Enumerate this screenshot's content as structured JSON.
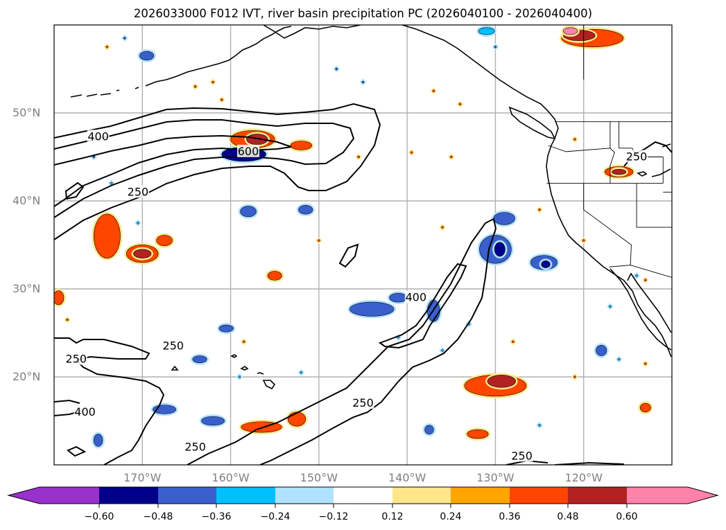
{
  "title": "2026033000 F012 IVT, river basin precipitation PC (2026040100 - 2026040400)",
  "axes": {
    "lat_labels": [
      {
        "label": "50°N",
        "lat": 50
      },
      {
        "label": "40°N",
        "lat": 40
      },
      {
        "label": "30°N",
        "lat": 30
      },
      {
        "label": "20°N",
        "lat": 20
      }
    ],
    "lon_labels": [
      {
        "label": "170°W",
        "lon": -170
      },
      {
        "label": "160°W",
        "lon": -160
      },
      {
        "label": "150°W",
        "lon": -150
      },
      {
        "label": "140°W",
        "lon": -140
      },
      {
        "label": "130°W",
        "lon": -130
      },
      {
        "label": "120°W",
        "lon": -120
      }
    ],
    "extent": {
      "lon_min": -180,
      "lon_max": -110,
      "lat_min": 10,
      "lat_max": 60
    }
  },
  "ivt_contours": {
    "levels": [
      250,
      400,
      600
    ],
    "labels": [
      {
        "text": "400",
        "lon": -175,
        "lat": 47.3
      },
      {
        "text": "600",
        "lon": -158,
        "lat": 45.6
      },
      {
        "text": "250",
        "lon": -170.5,
        "lat": 41
      },
      {
        "text": "250",
        "lon": -166.5,
        "lat": 23.5
      },
      {
        "text": "250",
        "lon": -177.5,
        "lat": 22
      },
      {
        "text": "400",
        "lon": -176.5,
        "lat": 16
      },
      {
        "text": "400",
        "lon": -139,
        "lat": 29
      },
      {
        "text": "250",
        "lon": -145,
        "lat": 17
      },
      {
        "text": "250",
        "lon": -164,
        "lat": 12
      },
      {
        "text": "250",
        "lon": -127,
        "lat": 11
      },
      {
        "text": "250",
        "lon": -114,
        "lat": 45
      }
    ]
  },
  "colorbar": {
    "ticks": [
      "−0.60",
      "−0.48",
      "−0.36",
      "−0.24",
      "−0.12",
      "0.12",
      "0.24",
      "0.36",
      "0.48",
      "0.60"
    ],
    "colors": [
      "#9932cc",
      "#00008b",
      "#3a5fcd",
      "#00bfff",
      "#b0e2ff",
      "#ffffff",
      "#fde68a",
      "#ffa500",
      "#ff4500",
      "#b22222",
      "#ff82ab"
    ]
  },
  "precip_blobs": [
    {
      "lon": -158.5,
      "lat": 45.3,
      "rx": 2.5,
      "ry": 0.8,
      "cls": 1
    },
    {
      "lon": -157.5,
      "lat": 47,
      "rx": 2.5,
      "ry": 1,
      "cls": 8
    },
    {
      "lon": -157,
      "lat": 47,
      "rx": 1.2,
      "ry": 0.6,
      "cls": 9
    },
    {
      "lon": -152,
      "lat": 46.3,
      "rx": 1.2,
      "ry": 0.5,
      "cls": 8
    },
    {
      "lon": -174,
      "lat": 36,
      "rx": 1.5,
      "ry": 2.5,
      "cls": 8
    },
    {
      "lon": -170,
      "lat": 34,
      "rx": 1.8,
      "ry": 1,
      "cls": 8
    },
    {
      "lon": -170,
      "lat": 34,
      "rx": 1,
      "ry": 0.5,
      "cls": 9
    },
    {
      "lon": -167.5,
      "lat": 35.5,
      "rx": 0.9,
      "ry": 0.6,
      "cls": 8
    },
    {
      "lon": -179.5,
      "lat": 29,
      "rx": 0.6,
      "ry": 0.8,
      "cls": 8
    },
    {
      "lon": -156.5,
      "lat": 14.3,
      "rx": 2.3,
      "ry": 0.6,
      "cls": 8
    },
    {
      "lon": -152.5,
      "lat": 15.2,
      "rx": 1,
      "ry": 0.8,
      "cls": 8
    },
    {
      "lon": -155,
      "lat": 31.5,
      "rx": 0.8,
      "ry": 0.5,
      "cls": 8
    },
    {
      "lon": -130,
      "lat": 19,
      "rx": 3.5,
      "ry": 1.2,
      "cls": 8
    },
    {
      "lon": -129.3,
      "lat": 19.5,
      "rx": 1.6,
      "ry": 0.7,
      "cls": 9
    },
    {
      "lon": -132,
      "lat": 13.5,
      "rx": 1.2,
      "ry": 0.5,
      "cls": 8
    },
    {
      "lon": -119,
      "lat": 58.5,
      "rx": 3.5,
      "ry": 1,
      "cls": 8
    },
    {
      "lon": -120.5,
      "lat": 58.8,
      "rx": 1.8,
      "ry": 0.6,
      "cls": 9
    },
    {
      "lon": -121.5,
      "lat": 59.3,
      "rx": 0.8,
      "ry": 0.4,
      "cls": 10
    },
    {
      "lon": -116,
      "lat": 43.3,
      "rx": 1.6,
      "ry": 0.6,
      "cls": 8
    },
    {
      "lon": -116,
      "lat": 43.3,
      "rx": 0.8,
      "ry": 0.3,
      "cls": 9
    },
    {
      "lon": -113,
      "lat": 16.5,
      "rx": 0.6,
      "ry": 0.5,
      "cls": 8
    },
    {
      "lon": -130,
      "lat": 34.5,
      "rx": 1.8,
      "ry": 1.6,
      "cls": 2
    },
    {
      "lon": -129.5,
      "lat": 34.5,
      "rx": 0.6,
      "ry": 0.8,
      "cls": 1
    },
    {
      "lon": -124.5,
      "lat": 33,
      "rx": 1.5,
      "ry": 0.8,
      "cls": 2
    },
    {
      "lon": -124.3,
      "lat": 32.8,
      "rx": 0.5,
      "ry": 0.4,
      "cls": 1
    },
    {
      "lon": -129,
      "lat": 38,
      "rx": 1.2,
      "ry": 0.7,
      "cls": 2
    },
    {
      "lon": -144,
      "lat": 27.7,
      "rx": 2.5,
      "ry": 0.8,
      "cls": 2
    },
    {
      "lon": -141,
      "lat": 29,
      "rx": 1,
      "ry": 0.5,
      "cls": 2
    },
    {
      "lon": -137,
      "lat": 27.5,
      "rx": 0.7,
      "ry": 1.2,
      "cls": 2
    },
    {
      "lon": -158,
      "lat": 38.8,
      "rx": 0.9,
      "ry": 0.6,
      "cls": 2
    },
    {
      "lon": -151.5,
      "lat": 39,
      "rx": 0.8,
      "ry": 0.5,
      "cls": 2
    },
    {
      "lon": -160.5,
      "lat": 25.5,
      "rx": 0.8,
      "ry": 0.4,
      "cls": 2
    },
    {
      "lon": -163.5,
      "lat": 22,
      "rx": 0.8,
      "ry": 0.4,
      "cls": 2
    },
    {
      "lon": -167.5,
      "lat": 16.3,
      "rx": 1.3,
      "ry": 0.5,
      "cls": 2
    },
    {
      "lon": -162,
      "lat": 15,
      "rx": 1.3,
      "ry": 0.5,
      "cls": 2
    },
    {
      "lon": -175,
      "lat": 12.8,
      "rx": 0.5,
      "ry": 0.7,
      "cls": 2
    },
    {
      "lon": -169.5,
      "lat": 56.5,
      "rx": 0.8,
      "ry": 0.5,
      "cls": 2
    },
    {
      "lon": -118,
      "lat": 23,
      "rx": 0.6,
      "ry": 0.6,
      "cls": 2
    },
    {
      "lon": -137.5,
      "lat": 14,
      "rx": 0.5,
      "ry": 0.5,
      "cls": 2
    },
    {
      "lon": -131,
      "lat": 59.3,
      "rx": 0.9,
      "ry": 0.4,
      "cls": 3
    }
  ],
  "small_dots": [
    {
      "lon": -174,
      "lat": 57.5,
      "cls": 8
    },
    {
      "lon": -164,
      "lat": 53,
      "cls": 8
    },
    {
      "lon": -162,
      "lat": 53.5,
      "cls": 8
    },
    {
      "lon": -161,
      "lat": 51.5,
      "cls": 8
    },
    {
      "lon": -137,
      "lat": 52.5,
      "cls": 8
    },
    {
      "lon": -134,
      "lat": 51,
      "cls": 8
    },
    {
      "lon": -121,
      "lat": 47,
      "cls": 8
    },
    {
      "lon": -139.5,
      "lat": 45.5,
      "cls": 8
    },
    {
      "lon": -135,
      "lat": 45,
      "cls": 8
    },
    {
      "lon": -145.5,
      "lat": 45,
      "cls": 8
    },
    {
      "lon": -125,
      "lat": 39,
      "cls": 8
    },
    {
      "lon": -136,
      "lat": 37,
      "cls": 8
    },
    {
      "lon": -178.5,
      "lat": 26.5,
      "cls": 8
    },
    {
      "lon": -158.5,
      "lat": 24,
      "cls": 8
    },
    {
      "lon": -150,
      "lat": 35.5,
      "cls": 8
    },
    {
      "lon": -120,
      "lat": 35.5,
      "cls": 8
    },
    {
      "lon": -113,
      "lat": 31,
      "cls": 8
    },
    {
      "lon": -128,
      "lat": 24,
      "cls": 8
    },
    {
      "lon": -121,
      "lat": 20,
      "cls": 8
    },
    {
      "lon": -113,
      "lat": 21.5,
      "cls": 8
    },
    {
      "lon": -172,
      "lat": 58.5,
      "cls": 2
    },
    {
      "lon": -148,
      "lat": 55,
      "cls": 2
    },
    {
      "lon": -145,
      "lat": 53.5,
      "cls": 2
    },
    {
      "lon": -130,
      "lat": 57.5,
      "cls": 2
    },
    {
      "lon": -175.5,
      "lat": 45,
      "cls": 2
    },
    {
      "lon": -173.5,
      "lat": 42,
      "cls": 3
    },
    {
      "lon": -170.5,
      "lat": 37.5,
      "cls": 3
    },
    {
      "lon": -141,
      "lat": 24.5,
      "cls": 3
    },
    {
      "lon": -136,
      "lat": 23,
      "cls": 3
    },
    {
      "lon": -133,
      "lat": 26,
      "cls": 3
    },
    {
      "lon": -114,
      "lat": 31.5,
      "cls": 3
    },
    {
      "lon": -117,
      "lat": 28,
      "cls": 3
    },
    {
      "lon": -116,
      "lat": 22,
      "cls": 3
    },
    {
      "lon": -125,
      "lat": 14.5,
      "cls": 3
    },
    {
      "lon": -152,
      "lat": 20.5,
      "cls": 3
    },
    {
      "lon": -159,
      "lat": 20,
      "cls": 3
    }
  ],
  "state_borders": [
    [
      [
        -123.2,
        49
      ],
      [
        -110,
        49
      ]
    ],
    [
      [
        -120,
        60
      ],
      [
        -120,
        53.8
      ]
    ],
    [
      [
        -117,
        49
      ],
      [
        -117,
        46
      ],
      [
        -116.5,
        45.5
      ],
      [
        -117,
        44
      ],
      [
        -117,
        42
      ]
    ],
    [
      [
        -124.2,
        42
      ],
      [
        -111,
        42
      ]
    ],
    [
      [
        -124,
        46.3
      ],
      [
        -122,
        45.6
      ],
      [
        -117,
        46
      ]
    ],
    [
      [
        -120,
        42
      ],
      [
        -120,
        39
      ],
      [
        -114.6,
        35
      ]
    ],
    [
      [
        -114,
        42
      ],
      [
        -114,
        37
      ],
      [
        -110,
        37
      ]
    ],
    [
      [
        -111,
        45
      ],
      [
        -111,
        42
      ]
    ],
    [
      [
        -111,
        41
      ],
      [
        -110,
        41
      ]
    ],
    [
      [
        -114.6,
        35
      ],
      [
        -114.7,
        32.7
      ],
      [
        -110,
        31.3
      ]
    ],
    [
      [
        -117.1,
        32.5
      ],
      [
        -114.7,
        32.7
      ]
    ],
    [
      [
        -116,
        49
      ],
      [
        -116,
        46
      ],
      [
        -114.5,
        46
      ],
      [
        -114,
        45
      ],
      [
        -111,
        45
      ]
    ]
  ]
}
